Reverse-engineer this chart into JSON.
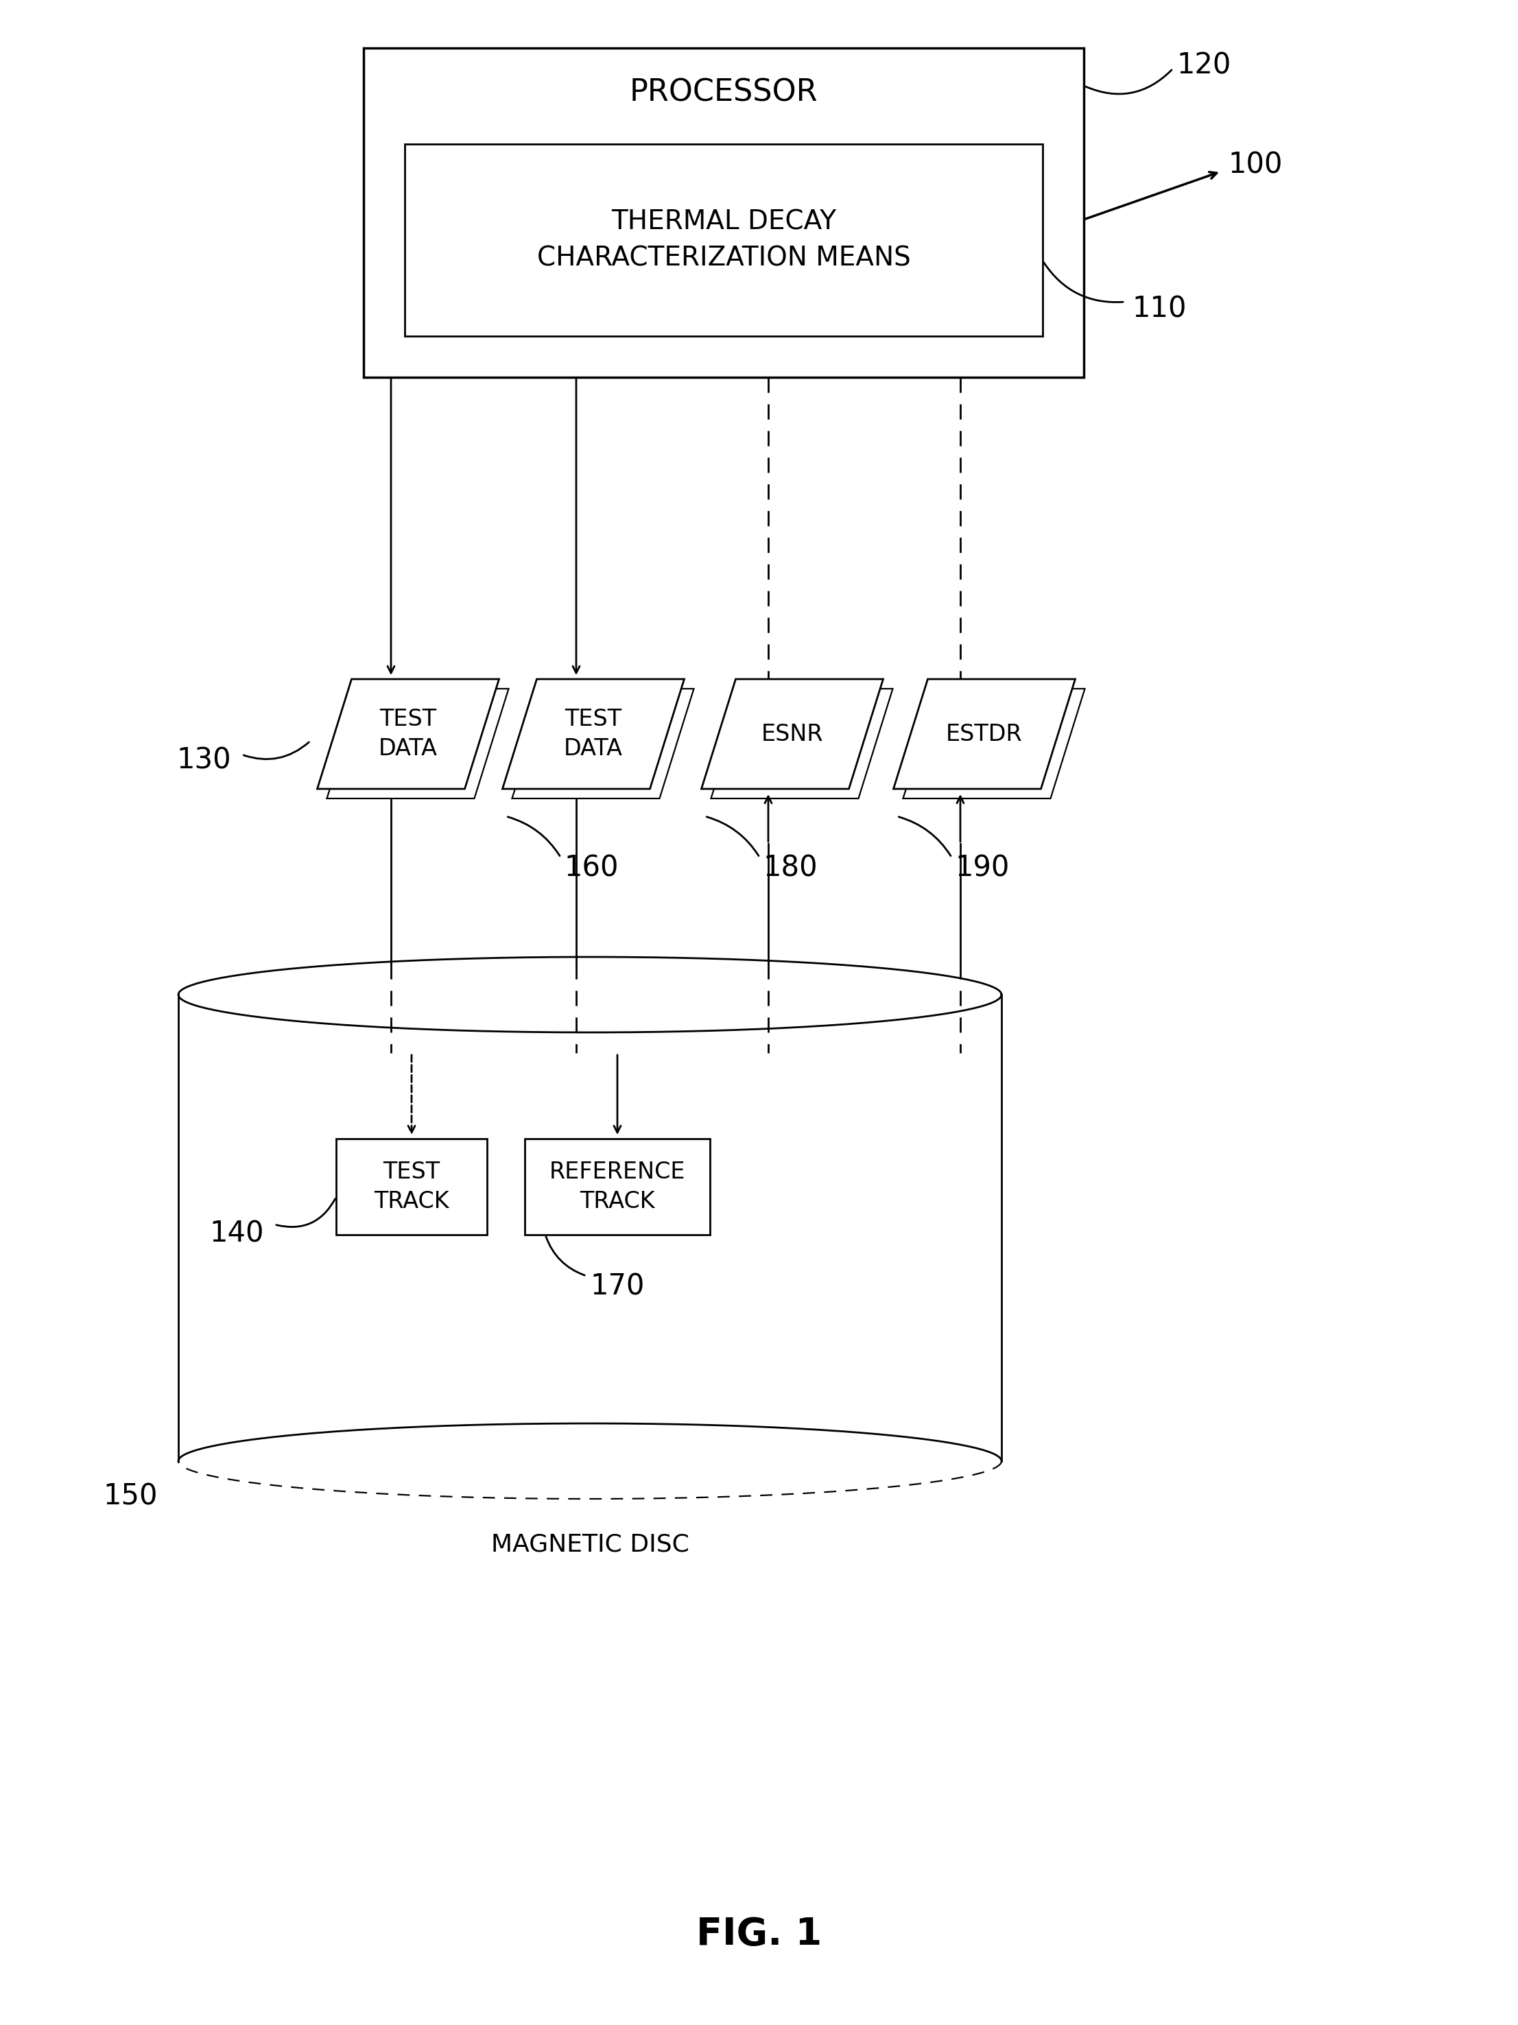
{
  "bg_color": "#ffffff",
  "fig_width": 22.13,
  "fig_height": 29.52,
  "title": "FIG. 1",
  "proc_label": "PROCESSOR",
  "proc_ref": "120",
  "tdcm_label": "THERMAL DECAY\nCHARACTERIZATION MEANS",
  "tdcm_ref": "110",
  "system_ref": "100",
  "para_labels": [
    "TEST\nDATA",
    "TEST\nDATA",
    "ESNR",
    "ESTDR"
  ],
  "para_refs": [
    "130",
    "160",
    "180",
    "190"
  ],
  "track_labels": [
    "TEST\nTRACK",
    "REFERENCE\nTRACK"
  ],
  "track_refs": [
    "140",
    "170"
  ],
  "disc_label": "MAGNETIC DISC",
  "disc_ref": "150"
}
